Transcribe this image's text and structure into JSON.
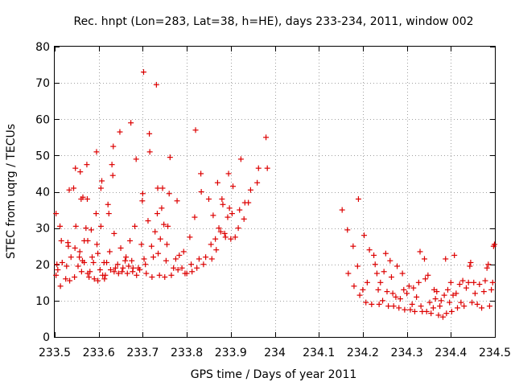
{
  "chart_data": {
    "type": "scatter",
    "title": "Rec. hnpt (Lon=283, Lat=38, h=HE), days 233-234, 2011, window 002",
    "xlabel": "GPS time / Days of year 2011",
    "ylabel": "STEC from uqrg / TECUs",
    "xlim": [
      233.5,
      234.5
    ],
    "ylim": [
      0,
      80
    ],
    "xticks": [
      233.5,
      233.6,
      233.7,
      233.8,
      233.9,
      234.0,
      234.1,
      234.2,
      234.3,
      234.4,
      234.5
    ],
    "xtick_labels": [
      "233.5",
      "233.6",
      "233.7",
      "233.8",
      "233.9",
      "234",
      "234.1",
      "234.2",
      "234.3",
      "234.4",
      "234.5"
    ],
    "yticks": [
      0,
      10,
      20,
      30,
      40,
      50,
      60,
      70,
      80
    ],
    "ytick_labels": [
      "0",
      "10",
      "20",
      "30",
      "40",
      "50",
      "60",
      "70",
      "80"
    ],
    "grid": true,
    "marker": "+",
    "color": "#dd0000",
    "points": [
      [
        233.503,
        34.0
      ],
      [
        233.503,
        17.0
      ],
      [
        233.505,
        20.0
      ],
      [
        233.507,
        18.5
      ],
      [
        233.512,
        30.5
      ],
      [
        233.513,
        14.0
      ],
      [
        233.515,
        26.5
      ],
      [
        233.517,
        20.5
      ],
      [
        233.525,
        16.0
      ],
      [
        233.527,
        19.5
      ],
      [
        233.53,
        26.0
      ],
      [
        233.531,
        25.0
      ],
      [
        233.533,
        40.5
      ],
      [
        233.534,
        15.5
      ],
      [
        233.537,
        22.0
      ],
      [
        233.543,
        41.0
      ],
      [
        233.545,
        16.5
      ],
      [
        233.546,
        24.5
      ],
      [
        233.547,
        46.5
      ],
      [
        233.548,
        30.5
      ],
      [
        233.553,
        19.5
      ],
      [
        233.556,
        22.0
      ],
      [
        233.557,
        23.5
      ],
      [
        233.558,
        45.5
      ],
      [
        233.56,
        38.0
      ],
      [
        233.561,
        18.0
      ],
      [
        233.563,
        21.0
      ],
      [
        233.564,
        38.5
      ],
      [
        233.567,
        26.5
      ],
      [
        233.567,
        20.5
      ],
      [
        233.571,
        30.0
      ],
      [
        233.573,
        47.5
      ],
      [
        233.574,
        38.0
      ],
      [
        233.575,
        26.5
      ],
      [
        233.575,
        17.5
      ],
      [
        233.578,
        16.5
      ],
      [
        233.58,
        18.0
      ],
      [
        233.583,
        29.5
      ],
      [
        233.585,
        22.0
      ],
      [
        233.588,
        20.5
      ],
      [
        233.59,
        16.0
      ],
      [
        233.594,
        34.0
      ],
      [
        233.595,
        51.0
      ],
      [
        233.596,
        25.5
      ],
      [
        233.598,
        23.0
      ],
      [
        233.598,
        15.5
      ],
      [
        233.603,
        18.5
      ],
      [
        233.605,
        30.5
      ],
      [
        233.605,
        41.0
      ],
      [
        233.607,
        43.0
      ],
      [
        233.609,
        17.0
      ],
      [
        233.612,
        20.5
      ],
      [
        233.613,
        16.0
      ],
      [
        233.615,
        17.0
      ],
      [
        233.618,
        20.5
      ],
      [
        233.621,
        36.5
      ],
      [
        233.623,
        34.0
      ],
      [
        233.625,
        23.5
      ],
      [
        233.627,
        18.5
      ],
      [
        233.63,
        47.5
      ],
      [
        233.632,
        44.5
      ],
      [
        233.633,
        52.5
      ],
      [
        233.635,
        28.5
      ],
      [
        233.635,
        18.0
      ],
      [
        233.638,
        19.0
      ],
      [
        233.643,
        20.0
      ],
      [
        233.645,
        17.5
      ],
      [
        233.648,
        56.5
      ],
      [
        233.65,
        24.5
      ],
      [
        233.653,
        18.0
      ],
      [
        233.655,
        19.0
      ],
      [
        233.66,
        21.0
      ],
      [
        233.662,
        22.0
      ],
      [
        233.665,
        17.5
      ],
      [
        233.668,
        19.5
      ],
      [
        233.671,
        26.5
      ],
      [
        233.673,
        59.0
      ],
      [
        233.675,
        21.0
      ],
      [
        233.677,
        18.0
      ],
      [
        233.678,
        19.0
      ],
      [
        233.682,
        30.5
      ],
      [
        233.685,
        49.0
      ],
      [
        233.686,
        17.0
      ],
      [
        233.69,
        19.0
      ],
      [
        233.693,
        18.5
      ],
      [
        233.697,
        25.5
      ],
      [
        233.699,
        37.5
      ],
      [
        233.7,
        39.5
      ],
      [
        233.702,
        73.0
      ],
      [
        233.703,
        21.5
      ],
      [
        233.706,
        20.0
      ],
      [
        233.708,
        17.5
      ],
      [
        233.712,
        32.0
      ],
      [
        233.715,
        56.0
      ],
      [
        233.716,
        51.0
      ],
      [
        233.72,
        25.0
      ],
      [
        233.721,
        16.5
      ],
      [
        233.724,
        22.0
      ],
      [
        233.728,
        29.0
      ],
      [
        233.731,
        69.5
      ],
      [
        233.733,
        34.0
      ],
      [
        233.734,
        41.0
      ],
      [
        233.735,
        23.0
      ],
      [
        233.738,
        17.0
      ],
      [
        233.74,
        27.0
      ],
      [
        233.743,
        35.5
      ],
      [
        233.745,
        41.0
      ],
      [
        233.748,
        31.0
      ],
      [
        233.75,
        16.5
      ],
      [
        233.753,
        21.0
      ],
      [
        233.755,
        25.5
      ],
      [
        233.757,
        30.5
      ],
      [
        233.76,
        39.5
      ],
      [
        233.762,
        49.5
      ],
      [
        233.765,
        17.0
      ],
      [
        233.77,
        19.0
      ],
      [
        233.775,
        21.5
      ],
      [
        233.778,
        37.5
      ],
      [
        233.78,
        18.5
      ],
      [
        233.783,
        22.5
      ],
      [
        233.789,
        19.0
      ],
      [
        233.793,
        23.5
      ],
      [
        233.796,
        17.5
      ],
      [
        233.8,
        17.5
      ],
      [
        233.807,
        27.5
      ],
      [
        233.81,
        20.0
      ],
      [
        233.812,
        18.0
      ],
      [
        233.818,
        33.0
      ],
      [
        233.82,
        57.0
      ],
      [
        233.823,
        19.0
      ],
      [
        233.828,
        21.5
      ],
      [
        233.832,
        45.0
      ],
      [
        233.833,
        40.0
      ],
      [
        233.838,
        20.0
      ],
      [
        233.843,
        22.0
      ],
      [
        233.85,
        38.0
      ],
      [
        233.855,
        25.5
      ],
      [
        233.857,
        21.5
      ],
      [
        233.86,
        33.5
      ],
      [
        233.865,
        27.0
      ],
      [
        233.867,
        24.0
      ],
      [
        233.87,
        42.5
      ],
      [
        233.873,
        30.0
      ],
      [
        233.877,
        29.0
      ],
      [
        233.88,
        38.0
      ],
      [
        233.882,
        36.5
      ],
      [
        233.886,
        28.5
      ],
      [
        233.888,
        27.5
      ],
      [
        233.893,
        33.0
      ],
      [
        233.895,
        45.0
      ],
      [
        233.897,
        35.5
      ],
      [
        233.9,
        27.0
      ],
      [
        233.903,
        34.0
      ],
      [
        233.905,
        41.5
      ],
      [
        233.91,
        27.5
      ],
      [
        233.917,
        30.0
      ],
      [
        233.92,
        35.0
      ],
      [
        233.923,
        49.0
      ],
      [
        233.93,
        32.5
      ],
      [
        233.932,
        37.0
      ],
      [
        233.94,
        37.0
      ],
      [
        233.945,
        40.5
      ],
      [
        233.96,
        42.5
      ],
      [
        233.963,
        46.5
      ],
      [
        233.98,
        55.0
      ],
      [
        233.983,
        46.5
      ],
      [
        234.153,
        35.0
      ],
      [
        234.165,
        29.5
      ],
      [
        234.167,
        17.5
      ],
      [
        234.178,
        25.0
      ],
      [
        234.18,
        14.0
      ],
      [
        234.188,
        19.5
      ],
      [
        234.19,
        38.0
      ],
      [
        234.193,
        11.5
      ],
      [
        234.2,
        13.0
      ],
      [
        234.203,
        28.0
      ],
      [
        234.207,
        9.5
      ],
      [
        234.21,
        15.0
      ],
      [
        234.215,
        24.0
      ],
      [
        234.22,
        9.0
      ],
      [
        234.225,
        22.5
      ],
      [
        234.228,
        20.0
      ],
      [
        234.232,
        17.5
      ],
      [
        234.235,
        13.0
      ],
      [
        234.237,
        9.0
      ],
      [
        234.24,
        15.0
      ],
      [
        234.245,
        10.0
      ],
      [
        234.248,
        18.0
      ],
      [
        234.252,
        23.0
      ],
      [
        234.255,
        12.5
      ],
      [
        234.258,
        8.5
      ],
      [
        234.262,
        21.0
      ],
      [
        234.265,
        16.5
      ],
      [
        234.268,
        12.0
      ],
      [
        234.27,
        8.5
      ],
      [
        234.275,
        11.0
      ],
      [
        234.278,
        19.5
      ],
      [
        234.282,
        8.0
      ],
      [
        234.285,
        10.5
      ],
      [
        234.29,
        17.5
      ],
      [
        234.293,
        13.0
      ],
      [
        234.295,
        7.5
      ],
      [
        234.3,
        12.0
      ],
      [
        234.305,
        14.0
      ],
      [
        234.308,
        7.5
      ],
      [
        234.312,
        9.0
      ],
      [
        234.315,
        13.5
      ],
      [
        234.318,
        7.0
      ],
      [
        234.322,
        11.0
      ],
      [
        234.327,
        15.0
      ],
      [
        234.33,
        23.5
      ],
      [
        234.332,
        8.5
      ],
      [
        234.335,
        7.0
      ],
      [
        234.34,
        21.5
      ],
      [
        234.342,
        16.0
      ],
      [
        234.345,
        7.0
      ],
      [
        234.348,
        17.0
      ],
      [
        234.352,
        9.5
      ],
      [
        234.355,
        6.5
      ],
      [
        234.36,
        8.0
      ],
      [
        234.362,
        13.0
      ],
      [
        234.365,
        10.5
      ],
      [
        234.368,
        12.5
      ],
      [
        234.372,
        6.0
      ],
      [
        234.375,
        8.5
      ],
      [
        234.378,
        10.0
      ],
      [
        234.382,
        5.5
      ],
      [
        234.385,
        11.5
      ],
      [
        234.388,
        21.5
      ],
      [
        234.39,
        6.5
      ],
      [
        234.393,
        13.0
      ],
      [
        234.397,
        9.5
      ],
      [
        234.4,
        15.0
      ],
      [
        234.402,
        7.0
      ],
      [
        234.405,
        11.5
      ],
      [
        234.408,
        22.5
      ],
      [
        234.412,
        12.0
      ],
      [
        234.415,
        8.0
      ],
      [
        234.42,
        14.5
      ],
      [
        234.423,
        9.5
      ],
      [
        234.427,
        15.5
      ],
      [
        234.43,
        8.5
      ],
      [
        234.435,
        13.5
      ],
      [
        234.44,
        15.0
      ],
      [
        234.443,
        19.5
      ],
      [
        234.445,
        20.5
      ],
      [
        234.448,
        9.5
      ],
      [
        234.452,
        15.0
      ],
      [
        234.455,
        12.0
      ],
      [
        234.46,
        9.0
      ],
      [
        234.465,
        14.5
      ],
      [
        234.47,
        8.0
      ],
      [
        234.475,
        12.5
      ],
      [
        234.478,
        15.5
      ],
      [
        234.482,
        19.0
      ],
      [
        234.485,
        20.0
      ],
      [
        234.488,
        8.5
      ],
      [
        234.492,
        13.0
      ],
      [
        234.495,
        15.0
      ],
      [
        234.497,
        25.0
      ],
      [
        234.499,
        25.5
      ]
    ]
  }
}
